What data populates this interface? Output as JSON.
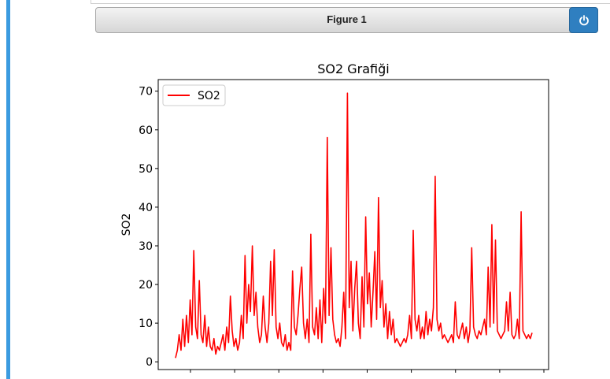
{
  "figure": {
    "title": "Figure 1",
    "close_icon": "power-icon",
    "accent_color": "#2f7fc0"
  },
  "chart_data": {
    "type": "line",
    "title": "SO2 Grafiği",
    "xlabel": "",
    "ylabel": "SO2",
    "ylim": [
      -2,
      73
    ],
    "yticks": [
      0,
      10,
      20,
      30,
      40,
      50,
      60,
      70
    ],
    "x_tick_count": 9,
    "x_tick_labels_visible": false,
    "grid": false,
    "legend_position": "top-left",
    "series": [
      {
        "name": "SO2",
        "color": "#ff0000",
        "values": [
          1,
          3,
          7,
          3,
          11,
          4,
          12,
          5,
          16,
          7,
          28.8,
          9,
          6,
          21,
          7,
          5,
          12,
          4,
          9,
          4,
          3,
          6,
          2,
          4,
          3,
          5,
          7,
          3,
          9,
          5,
          17,
          8,
          4,
          6,
          3,
          5,
          12,
          6,
          27.5,
          10,
          20,
          13,
          30,
          12,
          18,
          9,
          5,
          7,
          17,
          9,
          5,
          10,
          26,
          12,
          29,
          9,
          6,
          10,
          5,
          4,
          7,
          3,
          5,
          3,
          23.5,
          9,
          7,
          12,
          19,
          24.5,
          10,
          6,
          11,
          5,
          33,
          9,
          7,
          14,
          6,
          16,
          5,
          19,
          10,
          58,
          12,
          29.5,
          11,
          7,
          5,
          6,
          4,
          9,
          18,
          6,
          69.5,
          14,
          26,
          8,
          19,
          26,
          10,
          6,
          22,
          9,
          37.5,
          15,
          23,
          9,
          18,
          28.5,
          11,
          42.5,
          14,
          21,
          9,
          15,
          6,
          13,
          7,
          11,
          5,
          6,
          5,
          4,
          5,
          6,
          5,
          7,
          12,
          6,
          34,
          11,
          8,
          12,
          6,
          9,
          6,
          13,
          7,
          11,
          8,
          14,
          48,
          11,
          8,
          10,
          6,
          7,
          6,
          5,
          6,
          7,
          5,
          15.5,
          7,
          6,
          8,
          10,
          6,
          9,
          5,
          8,
          29.5,
          9,
          7,
          6,
          8,
          7,
          9,
          11,
          7,
          24.5,
          9,
          35.5,
          10,
          31.5,
          8,
          7,
          6,
          7,
          8,
          15.5,
          8,
          18,
          7,
          6,
          7,
          11,
          6,
          38.8,
          8,
          7,
          6,
          7,
          6,
          7.5
        ]
      }
    ]
  }
}
